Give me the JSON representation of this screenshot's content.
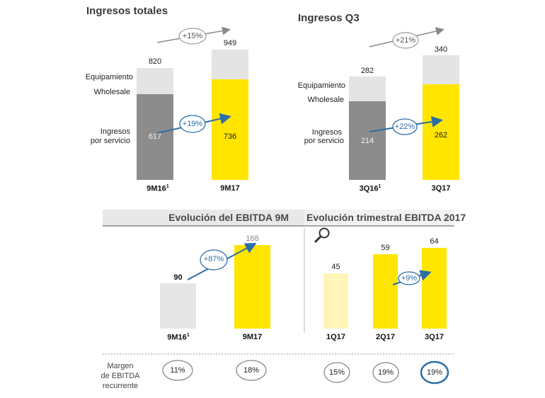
{
  "colors": {
    "gray_dark": "#8c8c8c",
    "gray_light": "#e4e4e4",
    "yellow": "#ffe500",
    "yellow_light": "#fff5b8",
    "blue": "#2e6ea6",
    "arrow_gray": "#8a8a8a"
  },
  "legend": {
    "equipamiento": "Equipamiento",
    "wholesale": "Wholesale",
    "ingresos_l1": "Ingresos",
    "ingresos_l2": "por servicio"
  },
  "margin_label": {
    "l1": "Margen",
    "l2": "de EBITDA",
    "l3": "recurrente"
  },
  "search_icon": "magnifier-icon",
  "chart_data": [
    {
      "type": "bar",
      "title": "Ingresos totales",
      "categories": [
        "9M16",
        "9M17"
      ],
      "category_superscripts": [
        "1",
        ""
      ],
      "totals": [
        820,
        949
      ],
      "series": [
        {
          "name": "Ingresos por servicio",
          "values": [
            617,
            736
          ]
        }
      ],
      "growth_total": "+15%",
      "growth_service": "+19%"
    },
    {
      "type": "bar",
      "title": "Ingresos Q3",
      "categories": [
        "3Q16",
        "3Q17"
      ],
      "category_superscripts": [
        "1",
        ""
      ],
      "totals": [
        282,
        340
      ],
      "series": [
        {
          "name": "Ingresos por servicio",
          "values": [
            214,
            262
          ]
        }
      ],
      "growth_total": "+21%",
      "growth_service": "+22%"
    },
    {
      "type": "bar",
      "title": "Evolución del EBITDA 9M",
      "categories": [
        "9M16",
        "9M17"
      ],
      "category_superscripts": [
        "1",
        ""
      ],
      "values": [
        90,
        168
      ],
      "growth": "+87%",
      "margins": [
        "11%",
        "18%"
      ]
    },
    {
      "type": "bar",
      "title": "Evolución trimestral EBITDA 2017",
      "categories": [
        "1Q17",
        "2Q17",
        "3Q17"
      ],
      "values": [
        45,
        59,
        64
      ],
      "growth": "+9%",
      "margins": [
        "15%",
        "19%",
        "19%"
      ]
    }
  ]
}
